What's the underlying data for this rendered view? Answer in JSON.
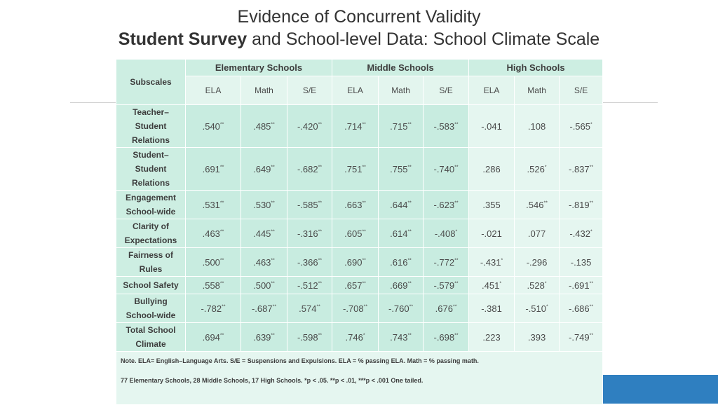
{
  "title": {
    "line1": "Evidence of Concurrent Validity",
    "line2_bold": "Student Survey",
    "line2_rest": " and School-level Data: School Climate Scale"
  },
  "table": {
    "subscales_header": "Subscales",
    "groups": [
      "Elementary Schools",
      "Middle Schools",
      "High Schools"
    ],
    "columns": [
      "ELA",
      "Math",
      "S/E",
      "ELA",
      "Math",
      "S/E",
      "ELA",
      "Math",
      "S/E"
    ],
    "rows": [
      {
        "lines": [
          "Teacher–",
          "Student",
          "Relations"
        ],
        "h": 60,
        "cells": [
          [
            ".540",
            "**"
          ],
          [
            ".485",
            "**"
          ],
          [
            "-.420",
            "**"
          ],
          [
            ".714",
            "**"
          ],
          [
            ".715",
            "**"
          ],
          [
            "-.583",
            "**"
          ],
          [
            "-.041",
            ""
          ],
          [
            ".108",
            ""
          ],
          [
            "-.565",
            "*"
          ]
        ]
      },
      {
        "lines": [
          "Student–",
          "Student",
          "Relations"
        ],
        "h": 61,
        "cells": [
          [
            ".691",
            "**"
          ],
          [
            ".649",
            "**"
          ],
          [
            "-.682",
            "**"
          ],
          [
            ".751",
            "**"
          ],
          [
            ".755",
            "**"
          ],
          [
            "-.740",
            "**"
          ],
          [
            ".286",
            ""
          ],
          [
            ".526",
            "*"
          ],
          [
            "-.837",
            "**"
          ]
        ]
      },
      {
        "lines": [
          "Engagement",
          "School-wide"
        ],
        "h": 39,
        "cells": [
          [
            ".531",
            "**"
          ],
          [
            ".530",
            "**"
          ],
          [
            "-.585",
            "**"
          ],
          [
            ".663",
            "**"
          ],
          [
            ".644",
            "**"
          ],
          [
            "-.623",
            "**"
          ],
          [
            ".355",
            ""
          ],
          [
            ".546",
            "**"
          ],
          [
            "-.819",
            "**"
          ]
        ]
      },
      {
        "lines": [
          "Clarity of",
          "Expectations"
        ],
        "h": 40,
        "cells": [
          [
            ".463",
            "**"
          ],
          [
            ".445",
            "**"
          ],
          [
            "-.316",
            "**"
          ],
          [
            ".605",
            "**"
          ],
          [
            ".614",
            "**"
          ],
          [
            "-.408",
            "*"
          ],
          [
            "-.021",
            ""
          ],
          [
            ".077",
            ""
          ],
          [
            "-.432",
            "*"
          ]
        ]
      },
      {
        "lines": [
          "Fairness of",
          "Rules"
        ],
        "h": 40,
        "cells": [
          [
            ".500",
            "**"
          ],
          [
            ".463",
            "**"
          ],
          [
            "-.366",
            "**"
          ],
          [
            ".690",
            "**"
          ],
          [
            ".616",
            "**"
          ],
          [
            "-.772",
            "**"
          ],
          [
            "-.431",
            "*"
          ],
          [
            "-.296",
            ""
          ],
          [
            "-.135",
            ""
          ]
        ]
      },
      {
        "lines": [
          "School Safety"
        ],
        "h": 25,
        "cells": [
          [
            ".558",
            "**"
          ],
          [
            ".500",
            "**"
          ],
          [
            "-.512",
            "**"
          ],
          [
            ".657",
            "**"
          ],
          [
            ".669",
            "**"
          ],
          [
            "-.579",
            "**"
          ],
          [
            ".451",
            "*"
          ],
          [
            ".528",
            "*"
          ],
          [
            "-.691",
            "**"
          ]
        ]
      },
      {
        "lines": [
          "Bullying",
          "School-wide"
        ],
        "h": 40,
        "cells": [
          [
            "-.782",
            "**"
          ],
          [
            "-.687",
            "**"
          ],
          [
            ".574",
            "**"
          ],
          [
            "-.708",
            "**"
          ],
          [
            "-.760",
            "**"
          ],
          [
            ".676",
            "**"
          ],
          [
            "-.381",
            ""
          ],
          [
            "-.510",
            "*"
          ],
          [
            "-.686",
            "**"
          ]
        ]
      },
      {
        "lines": [
          "Total School",
          "Climate"
        ],
        "h": 39,
        "cells": [
          [
            ".694",
            "**"
          ],
          [
            ".639",
            "**"
          ],
          [
            "-.598",
            "**"
          ],
          [
            ".746",
            "*"
          ],
          [
            ".743",
            "**"
          ],
          [
            "-.698",
            "**"
          ],
          [
            ".223",
            ""
          ],
          [
            ".393",
            ""
          ],
          [
            "-.749",
            "**"
          ]
        ]
      }
    ],
    "note1": "Note. ELA= English–Language Arts. S/E = Suspensions and Expulsions. ELA = % passing ELA. Math = % passing math.",
    "note2": "77 Elementary Schools, 28 Middle Schools,  17 High Schools. *p < .05. **p < .01, ***p < .001 One tailed."
  }
}
